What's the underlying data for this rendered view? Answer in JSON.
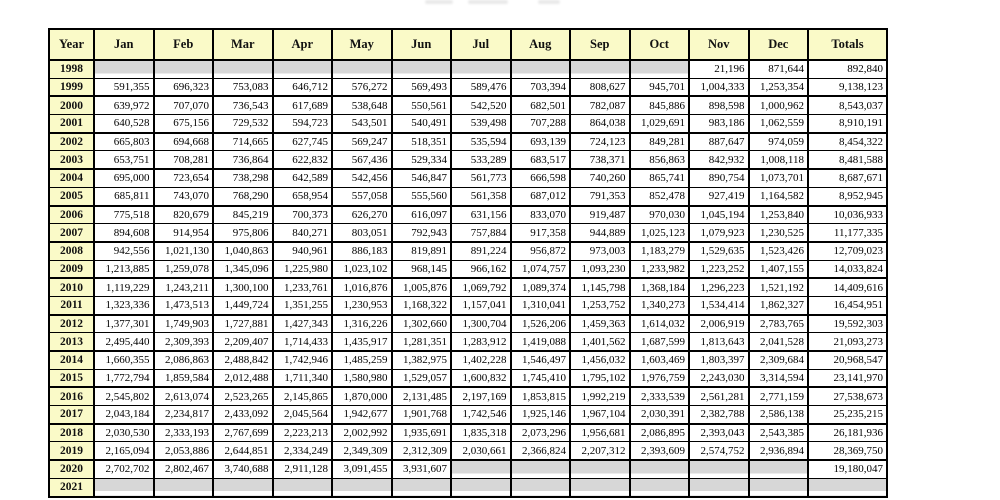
{
  "colors": {
    "header_bg": "#fafac8",
    "empty_cell": "#d7d7d7",
    "border": "#000000",
    "cell_bg": "#ffffff"
  },
  "table": {
    "columns": [
      "Year",
      "Jan",
      "Feb",
      "Mar",
      "Apr",
      "May",
      "Jun",
      "Jul",
      "Aug",
      "Sep",
      "Oct",
      "Nov",
      "Dec",
      "Totals"
    ],
    "rows": [
      {
        "year": "1998",
        "values": [
          null,
          null,
          null,
          null,
          null,
          null,
          null,
          null,
          null,
          null,
          "21,196",
          "871,644",
          "892,840"
        ]
      },
      {
        "year": "1999",
        "values": [
          "591,355",
          "696,323",
          "753,083",
          "646,712",
          "576,272",
          "569,493",
          "589,476",
          "703,394",
          "808,627",
          "945,701",
          "1,004,333",
          "1,253,354",
          "9,138,123"
        ]
      },
      {
        "year": "2000",
        "values": [
          "639,972",
          "707,070",
          "736,543",
          "617,689",
          "538,648",
          "550,561",
          "542,520",
          "682,501",
          "782,087",
          "845,886",
          "898,598",
          "1,000,962",
          "8,543,037"
        ]
      },
      {
        "year": "2001",
        "values": [
          "640,528",
          "675,156",
          "729,532",
          "594,723",
          "543,501",
          "540,491",
          "539,498",
          "707,288",
          "864,038",
          "1,029,691",
          "983,186",
          "1,062,559",
          "8,910,191"
        ]
      },
      {
        "year": "2002",
        "values": [
          "665,803",
          "694,668",
          "714,665",
          "627,745",
          "569,247",
          "518,351",
          "535,594",
          "693,139",
          "724,123",
          "849,281",
          "887,647",
          "974,059",
          "8,454,322"
        ]
      },
      {
        "year": "2003",
        "values": [
          "653,751",
          "708,281",
          "736,864",
          "622,832",
          "567,436",
          "529,334",
          "533,289",
          "683,517",
          "738,371",
          "856,863",
          "842,932",
          "1,008,118",
          "8,481,588"
        ]
      },
      {
        "year": "2004",
        "values": [
          "695,000",
          "723,654",
          "738,298",
          "642,589",
          "542,456",
          "546,847",
          "561,773",
          "666,598",
          "740,260",
          "865,741",
          "890,754",
          "1,073,701",
          "8,687,671"
        ]
      },
      {
        "year": "2005",
        "values": [
          "685,811",
          "743,070",
          "768,290",
          "658,954",
          "557,058",
          "555,560",
          "561,358",
          "687,012",
          "791,353",
          "852,478",
          "927,419",
          "1,164,582",
          "8,952,945"
        ]
      },
      {
        "year": "2006",
        "values": [
          "775,518",
          "820,679",
          "845,219",
          "700,373",
          "626,270",
          "616,097",
          "631,156",
          "833,070",
          "919,487",
          "970,030",
          "1,045,194",
          "1,253,840",
          "10,036,933"
        ]
      },
      {
        "year": "2007",
        "values": [
          "894,608",
          "914,954",
          "975,806",
          "840,271",
          "803,051",
          "792,943",
          "757,884",
          "917,358",
          "944,889",
          "1,025,123",
          "1,079,923",
          "1,230,525",
          "11,177,335"
        ]
      },
      {
        "year": "2008",
        "values": [
          "942,556",
          "1,021,130",
          "1,040,863",
          "940,961",
          "886,183",
          "819,891",
          "891,224",
          "956,872",
          "973,003",
          "1,183,279",
          "1,529,635",
          "1,523,426",
          "12,709,023"
        ]
      },
      {
        "year": "2009",
        "values": [
          "1,213,885",
          "1,259,078",
          "1,345,096",
          "1,225,980",
          "1,023,102",
          "968,145",
          "966,162",
          "1,074,757",
          "1,093,230",
          "1,233,982",
          "1,223,252",
          "1,407,155",
          "14,033,824"
        ]
      },
      {
        "year": "2010",
        "values": [
          "1,119,229",
          "1,243,211",
          "1,300,100",
          "1,233,761",
          "1,016,876",
          "1,005,876",
          "1,069,792",
          "1,089,374",
          "1,145,798",
          "1,368,184",
          "1,296,223",
          "1,521,192",
          "14,409,616"
        ]
      },
      {
        "year": "2011",
        "values": [
          "1,323,336",
          "1,473,513",
          "1,449,724",
          "1,351,255",
          "1,230,953",
          "1,168,322",
          "1,157,041",
          "1,310,041",
          "1,253,752",
          "1,340,273",
          "1,534,414",
          "1,862,327",
          "16,454,951"
        ]
      },
      {
        "year": "2012",
        "values": [
          "1,377,301",
          "1,749,903",
          "1,727,881",
          "1,427,343",
          "1,316,226",
          "1,302,660",
          "1,300,704",
          "1,526,206",
          "1,459,363",
          "1,614,032",
          "2,006,919",
          "2,783,765",
          "19,592,303"
        ]
      },
      {
        "year": "2013",
        "values": [
          "2,495,440",
          "2,309,393",
          "2,209,407",
          "1,714,433",
          "1,435,917",
          "1,281,351",
          "1,283,912",
          "1,419,088",
          "1,401,562",
          "1,687,599",
          "1,813,643",
          "2,041,528",
          "21,093,273"
        ]
      },
      {
        "year": "2014",
        "values": [
          "1,660,355",
          "2,086,863",
          "2,488,842",
          "1,742,946",
          "1,485,259",
          "1,382,975",
          "1,402,228",
          "1,546,497",
          "1,456,032",
          "1,603,469",
          "1,803,397",
          "2,309,684",
          "20,968,547"
        ]
      },
      {
        "year": "2015",
        "values": [
          "1,772,794",
          "1,859,584",
          "2,012,488",
          "1,711,340",
          "1,580,980",
          "1,529,057",
          "1,600,832",
          "1,745,410",
          "1,795,102",
          "1,976,759",
          "2,243,030",
          "3,314,594",
          "23,141,970"
        ]
      },
      {
        "year": "2016",
        "values": [
          "2,545,802",
          "2,613,074",
          "2,523,265",
          "2,145,865",
          "1,870,000",
          "2,131,485",
          "2,197,169",
          "1,853,815",
          "1,992,219",
          "2,333,539",
          "2,561,281",
          "2,771,159",
          "27,538,673"
        ]
      },
      {
        "year": "2017",
        "values": [
          "2,043,184",
          "2,234,817",
          "2,433,092",
          "2,045,564",
          "1,942,677",
          "1,901,768",
          "1,742,546",
          "1,925,146",
          "1,967,104",
          "2,030,391",
          "2,382,788",
          "2,586,138",
          "25,235,215"
        ]
      },
      {
        "year": "2018",
        "values": [
          "2,030,530",
          "2,333,193",
          "2,767,699",
          "2,223,213",
          "2,002,992",
          "1,935,691",
          "1,835,318",
          "2,073,296",
          "1,956,681",
          "2,086,895",
          "2,393,043",
          "2,543,385",
          "26,181,936"
        ]
      },
      {
        "year": "2019",
        "values": [
          "2,165,094",
          "2,053,886",
          "2,644,851",
          "2,334,249",
          "2,349,309",
          "2,312,309",
          "2,030,661",
          "2,366,824",
          "2,207,312",
          "2,393,609",
          "2,574,752",
          "2,936,894",
          "28,369,750"
        ]
      },
      {
        "year": "2020",
        "values": [
          "2,702,702",
          "2,802,467",
          "3,740,688",
          "2,911,128",
          "3,091,455",
          "3,931,607",
          null,
          null,
          null,
          null,
          null,
          null,
          "19,180,047"
        ]
      },
      {
        "year": "2021",
        "values": [
          null,
          null,
          null,
          null,
          null,
          null,
          null,
          null,
          null,
          null,
          null,
          null,
          null
        ]
      }
    ]
  }
}
